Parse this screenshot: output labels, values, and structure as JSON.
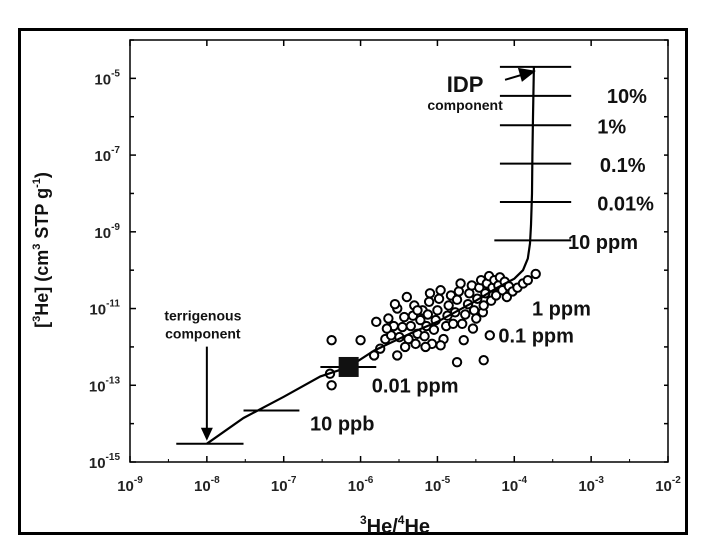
{
  "chart_data": {
    "type": "scatter",
    "title": "",
    "xlabel": {
      "pre": "3",
      "mid": "He/",
      "sup2": "4",
      "post": "He"
    },
    "ylabel": {
      "open": "[",
      "sup": "3",
      "mid": "He]  (cm",
      "sup2": "3",
      "post": " STP g",
      "sup3": "-1",
      "close": ")"
    },
    "x_scale": "log",
    "y_scale": "log",
    "xlim": [
      1e-09,
      0.01
    ],
    "ylim": [
      1e-15,
      0.0001
    ],
    "x_ticks": [
      {
        "base": "10",
        "exp": "-9",
        "value": 1e-09
      },
      {
        "base": "10",
        "exp": "-8",
        "value": 1e-08
      },
      {
        "base": "10",
        "exp": "-7",
        "value": 1e-07
      },
      {
        "base": "10",
        "exp": "-6",
        "value": 1e-06
      },
      {
        "base": "10",
        "exp": "-5",
        "value": 1e-05
      },
      {
        "base": "10",
        "exp": "-4",
        "value": 0.0001
      },
      {
        "base": "10",
        "exp": "-3",
        "value": 0.001
      },
      {
        "base": "10",
        "exp": "-2",
        "value": 0.01
      }
    ],
    "y_ticks": [
      {
        "base": "10",
        "exp": "-15",
        "value": 1e-15
      },
      {
        "base": "10",
        "exp": "-13",
        "value": 1e-13
      },
      {
        "base": "10",
        "exp": "-11",
        "value": 1e-11
      },
      {
        "base": "10",
        "exp": "-9",
        "value": 1e-09
      },
      {
        "base": "10",
        "exp": "-7",
        "value": 1e-07
      },
      {
        "base": "10",
        "exp": "-5",
        "value": 1e-05
      }
    ],
    "mixing_curve": [
      [
        1e-08,
        3e-15
      ],
      [
        3e-08,
        1.4e-14
      ],
      [
        1e-07,
        5e-14
      ],
      [
        3e-07,
        1.7e-13
      ],
      [
        7e-07,
        3e-13
      ],
      [
        1.5e-06,
        8e-13
      ],
      [
        5e-06,
        2.5e-12
      ],
      [
        1e-05,
        4.5e-12
      ],
      [
        3e-05,
        1.5e-11
      ],
      [
        6e-05,
        3.5e-11
      ],
      [
        0.0001,
        6e-11
      ],
      [
        0.00013,
        1e-10
      ],
      [
        0.00015,
        2e-10
      ],
      [
        0.00016,
        5e-10
      ],
      [
        0.000165,
        1.5e-09
      ],
      [
        0.00017,
        1e-08
      ],
      [
        0.000172,
        1e-07
      ],
      [
        0.000175,
        1e-06
      ],
      [
        0.00018,
        2e-05
      ]
    ],
    "mixing_marks": [
      {
        "label": "10%",
        "x": 0.000175,
        "y": 3.5e-06,
        "x_left": 6.5e-05,
        "x_right": 0.00055,
        "label_x": 0.0016,
        "label_y": 3.5e-06
      },
      {
        "label": "1%",
        "x": 0.000174,
        "y": 6e-07,
        "x_left": 6.5e-05,
        "x_right": 0.00055,
        "label_x": 0.0012,
        "label_y": 5.5e-07
      },
      {
        "label": "0.1%",
        "x": 0.000172,
        "y": 6e-08,
        "x_left": 6.5e-05,
        "x_right": 0.00055,
        "label_x": 0.0013,
        "label_y": 5.5e-08
      },
      {
        "label": "0.01%",
        "x": 0.00017,
        "y": 6e-09,
        "x_left": 6.5e-05,
        "x_right": 0.00055,
        "label_x": 0.0012,
        "label_y": 5.5e-09
      },
      {
        "label": "10 ppm",
        "x": 0.000162,
        "y": 6e-10,
        "x_left": 5.5e-05,
        "x_right": 0.00055,
        "label_x": 0.0005,
        "label_y": 5.5e-10
      },
      {
        "label": "1 ppm",
        "label_x": 0.00017,
        "label_y": 1e-11
      },
      {
        "label": "0.1 ppm",
        "label_x": 6.2e-05,
        "label_y": 2e-12
      },
      {
        "label": "0.01 ppm",
        "label_x": 1.4e-06,
        "label_y": 1e-13
      },
      {
        "label": "10 ppb",
        "x": 1e-07,
        "y": 2.2e-14,
        "x_left": 3e-08,
        "x_right": 1.6e-07,
        "label_x": 2.2e-07,
        "label_y": 1e-14
      }
    ],
    "end_members": {
      "terrigenous": {
        "x": 1e-08,
        "y": 3e-15,
        "x_left": 4e-09,
        "x_right": 3e-08,
        "label_line1": "terrigenous",
        "label_line2": "component",
        "label_x": 1e-08,
        "label_y": 3e-12
      },
      "idp": {
        "x": 0.00018,
        "y": 2e-05,
        "x_left": 6.5e-05,
        "x_right": 0.00055,
        "label": "IDP",
        "sublabel": "component",
        "label_x": 1.8e-05,
        "label_y": 1.1e-05
      }
    },
    "highlight_point": {
      "x": 7e-07,
      "y": 3e-13,
      "x_left": 3e-07,
      "x_right": 1.6e-06
    },
    "points": [
      [
        4.2e-07,
        1.5e-12
      ],
      [
        4.2e-07,
        1e-13
      ],
      [
        4e-07,
        2e-13
      ],
      [
        6e-07,
        2.5e-13
      ],
      [
        1e-06,
        1.5e-12
      ],
      [
        1.5e-06,
        6e-13
      ],
      [
        1.8e-06,
        9e-13
      ],
      [
        2.1e-06,
        1.6e-12
      ],
      [
        2.5e-06,
        2e-12
      ],
      [
        2.7e-06,
        3.5e-12
      ],
      [
        2.3e-06,
        5.5e-12
      ],
      [
        3e-06,
        1e-11
      ],
      [
        3.2e-06,
        1.8e-12
      ],
      [
        3.5e-06,
        3.3e-12
      ],
      [
        3.7e-06,
        6e-12
      ],
      [
        4e-06,
        2e-11
      ],
      [
        4.2e-06,
        1.6e-12
      ],
      [
        4.5e-06,
        3.5e-12
      ],
      [
        4.8e-06,
        6.5e-12
      ],
      [
        5e-06,
        1.2e-11
      ],
      [
        5.2e-06,
        1.2e-12
      ],
      [
        5.5e-06,
        2.2e-12
      ],
      [
        6e-06,
        5e-12
      ],
      [
        6.4e-06,
        9e-12
      ],
      [
        6.8e-06,
        1.9e-12
      ],
      [
        7.2e-06,
        3.5e-12
      ],
      [
        7.5e-06,
        7e-12
      ],
      [
        7.8e-06,
        1.5e-11
      ],
      [
        8e-06,
        2.5e-11
      ],
      [
        8.5e-06,
        1.2e-12
      ],
      [
        9e-06,
        2.8e-12
      ],
      [
        9.5e-06,
        5e-12
      ],
      [
        1e-05,
        9e-12
      ],
      [
        1.05e-05,
        1.8e-11
      ],
      [
        1.1e-05,
        3e-11
      ],
      [
        1.2e-05,
        1.6e-12
      ],
      [
        1.3e-05,
        3.5e-12
      ],
      [
        1.35e-05,
        6.5e-12
      ],
      [
        1.4e-05,
        1.2e-11
      ],
      [
        1.5e-05,
        2.2e-11
      ],
      [
        1.6e-05,
        4e-12
      ],
      [
        1.7e-05,
        8e-12
      ],
      [
        1.8e-05,
        1.7e-11
      ],
      [
        1.9e-05,
        2.8e-11
      ],
      [
        2e-05,
        4.5e-11
      ],
      [
        2.1e-05,
        4e-12
      ],
      [
        2.2e-05,
        1.5e-12
      ],
      [
        2.3e-05,
        7e-12
      ],
      [
        2.5e-05,
        1.3e-11
      ],
      [
        2.6e-05,
        2.5e-11
      ],
      [
        2.8e-05,
        4e-11
      ],
      [
        2.9e-05,
        3e-12
      ],
      [
        3e-05,
        9e-12
      ],
      [
        3.2e-05,
        5.5e-12
      ],
      [
        3.3e-05,
        1.8e-11
      ],
      [
        3.5e-05,
        3.5e-11
      ],
      [
        3.7e-05,
        5.5e-11
      ],
      [
        3.9e-05,
        8e-12
      ],
      [
        4e-05,
        1.2e-11
      ],
      [
        4.2e-05,
        2.5e-11
      ],
      [
        4.4e-05,
        4.5e-11
      ],
      [
        4.7e-05,
        7e-11
      ],
      [
        5e-05,
        1.6e-11
      ],
      [
        5.2e-05,
        3.5e-11
      ],
      [
        5.5e-05,
        5.5e-11
      ],
      [
        5.8e-05,
        2.2e-11
      ],
      [
        6.2e-05,
        4e-11
      ],
      [
        6.5e-05,
        6.5e-11
      ],
      [
        7e-05,
        3e-11
      ],
      [
        7.5e-05,
        5e-11
      ],
      [
        8e-05,
        2e-11
      ],
      [
        8.5e-05,
        3.8e-11
      ],
      [
        9.5e-05,
        2.8e-11
      ],
      [
        0.00011,
        3.5e-11
      ],
      [
        0.00013,
        4.5e-11
      ],
      [
        0.00015,
        5.5e-11
      ],
      [
        0.00019,
        8e-11
      ],
      [
        1.8e-05,
        4e-13
      ],
      [
        4e-05,
        4.5e-13
      ],
      [
        5.5e-06,
        9e-12
      ],
      [
        3.8e-06,
        1e-12
      ],
      [
        3e-06,
        6e-13
      ],
      [
        2.2e-06,
        3e-12
      ],
      [
        1.6e-06,
        4.5e-12
      ],
      [
        2.8e-06,
        1.3e-11
      ],
      [
        7e-06,
        1e-12
      ],
      [
        1.1e-05,
        1.1e-12
      ],
      [
        4.8e-05,
        2e-12
      ]
    ]
  }
}
